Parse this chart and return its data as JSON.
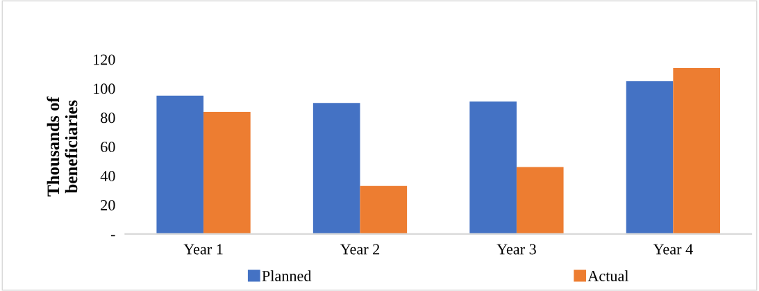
{
  "chart_data": {
    "type": "bar",
    "ylabel": "Thousands of\nbeneficiaries",
    "categories": [
      "Year 1",
      "Year 2",
      "Year 3",
      "Year 4"
    ],
    "series": [
      {
        "name": "Planned",
        "color": "#4472c4",
        "values": [
          95,
          90,
          91,
          105
        ]
      },
      {
        "name": "Actual",
        "color": "#ed7d31",
        "values": [
          84,
          33,
          46,
          114
        ]
      }
    ],
    "ylim": [
      0,
      120
    ],
    "yticks": [
      {
        "value": 0,
        "label": "-"
      },
      20,
      40,
      60,
      80,
      100,
      120
    ],
    "grid": false,
    "legend": "bottom"
  }
}
